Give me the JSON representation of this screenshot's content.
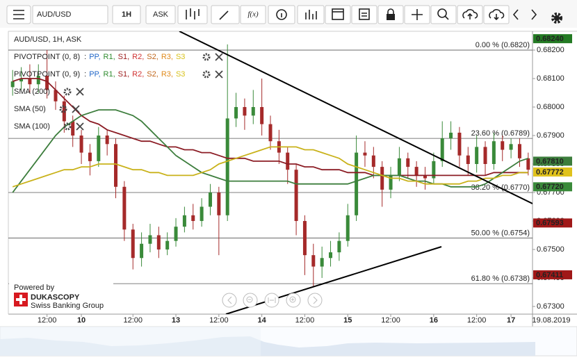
{
  "toolbar": {
    "symbol": "AUD/USD",
    "period": "1H",
    "side": "ASK",
    "fx": "f(x)"
  },
  "branding": {
    "powered": "Powered by",
    "brand": "DUKASCOPY",
    "tagline": "Swiss Banking Group"
  },
  "chart_data": {
    "type": "candlestick",
    "title": "AUD/USD, 1H, ASK",
    "categories": [
      null,
      null,
      null,
      null,
      "12:00",
      null,
      null,
      null,
      "10",
      null,
      null,
      null,
      null,
      null,
      "12:00",
      null,
      null,
      null,
      null,
      "13",
      null,
      null,
      null,
      null,
      "12:00",
      null,
      null,
      null,
      null,
      "14",
      null,
      null,
      null,
      null,
      "12:00",
      null,
      null,
      null,
      null,
      "15",
      null,
      null,
      null,
      null,
      "12:00",
      null,
      null,
      null,
      null,
      "16",
      null,
      null,
      null,
      null,
      "12:00",
      null,
      null,
      null,
      "17",
      null,
      null
    ],
    "date_label": "19.08.2019",
    "open": [
      0.6807,
      0.6809,
      0.681,
      0.6808,
      0.6811,
      0.6806,
      0.6802,
      0.6795,
      0.679,
      0.6784,
      0.6781,
      0.679,
      0.6787,
      0.6772,
      0.6757,
      0.6747,
      0.6752,
      0.6755,
      0.675,
      0.6753,
      0.6758,
      0.6762,
      0.676,
      0.6765,
      0.677,
      0.6762,
      0.6796,
      0.68,
      0.6797,
      0.68,
      0.6794,
      0.6788,
      0.6784,
      0.6778,
      0.676,
      0.6748,
      0.6744,
      0.6747,
      0.6749,
      0.6753,
      0.6762,
      0.6784,
      0.6783,
      0.6779,
      0.6771,
      0.6776,
      0.6782,
      0.6779,
      0.6776,
      0.6775,
      0.6781,
      0.6789,
      0.6791,
      0.6783,
      0.678,
      0.6786,
      0.678,
      0.6788,
      0.6785,
      0.6787,
      0.6782
    ],
    "high": [
      0.6813,
      0.6814,
      0.6815,
      0.6815,
      0.682,
      0.6809,
      0.6804,
      0.6797,
      0.6792,
      0.6787,
      0.6793,
      0.6792,
      0.6789,
      0.6774,
      0.6759,
      0.6756,
      0.6759,
      0.6758,
      0.6756,
      0.6761,
      0.6765,
      0.6766,
      0.6768,
      0.6773,
      0.6772,
      0.6822,
      0.6805,
      0.6803,
      0.6806,
      0.681,
      0.6797,
      0.6792,
      0.6786,
      0.678,
      0.6762,
      0.6752,
      0.6751,
      0.6753,
      0.6756,
      0.6766,
      0.679,
      0.6788,
      0.6786,
      0.6781,
      0.6779,
      0.6786,
      0.6784,
      0.6781,
      0.6779,
      0.6784,
      0.6795,
      0.6795,
      0.6793,
      0.6786,
      0.679,
      0.6788,
      0.6791,
      0.679,
      0.6789,
      0.6789,
      0.6784
    ],
    "low": [
      0.6804,
      0.6806,
      0.6805,
      0.6805,
      0.6803,
      0.6799,
      0.6791,
      0.6786,
      0.678,
      0.6776,
      0.6779,
      0.6783,
      0.6768,
      0.6753,
      0.6743,
      0.6744,
      0.6749,
      0.6747,
      0.6748,
      0.6751,
      0.6756,
      0.6757,
      0.6758,
      0.6762,
      0.6748,
      0.676,
      0.6793,
      0.6792,
      0.6794,
      0.679,
      0.6785,
      0.678,
      0.6773,
      0.6755,
      0.6741,
      0.6737,
      0.674,
      0.6744,
      0.6746,
      0.6751,
      0.676,
      0.6779,
      0.6775,
      0.6765,
      0.6768,
      0.6774,
      0.6775,
      0.6772,
      0.6771,
      0.6773,
      0.6779,
      0.6785,
      0.6779,
      0.6776,
      0.6777,
      0.6776,
      0.6778,
      0.6781,
      0.6782,
      0.6779,
      0.6776
    ],
    "close": [
      0.6809,
      0.681,
      0.6808,
      0.6811,
      0.6806,
      0.6802,
      0.6795,
      0.679,
      0.6784,
      0.6781,
      0.679,
      0.6787,
      0.6772,
      0.6757,
      0.6747,
      0.6752,
      0.6755,
      0.675,
      0.6753,
      0.6758,
      0.6762,
      0.676,
      0.6765,
      0.677,
      0.6762,
      0.6796,
      0.68,
      0.6797,
      0.68,
      0.6794,
      0.6788,
      0.6784,
      0.6778,
      0.676,
      0.6748,
      0.6744,
      0.6747,
      0.6749,
      0.6753,
      0.6762,
      0.6784,
      0.6783,
      0.6779,
      0.6771,
      0.6776,
      0.6782,
      0.6779,
      0.6776,
      0.6775,
      0.6781,
      0.6789,
      0.6791,
      0.6783,
      0.678,
      0.6786,
      0.678,
      0.6788,
      0.6785,
      0.6787,
      0.6782,
      0.6778
    ],
    "up_color": "#3a8a3a",
    "down_color": "#a52a2a",
    "series": [
      {
        "name": "SMA (200)",
        "color": "#8b1c24",
        "values": [
          0.6809,
          0.681,
          0.681,
          0.681,
          0.6809,
          0.6806,
          0.6803,
          0.68,
          0.6797,
          0.6795,
          0.6794,
          0.6792,
          0.6791,
          0.679,
          0.6789,
          0.6788,
          0.6788,
          0.6787,
          0.6786,
          0.6786,
          0.6785,
          0.6785,
          0.6784,
          0.6784,
          0.6783,
          0.6782,
          0.6782,
          0.6782,
          0.6781,
          0.6781,
          0.6781,
          0.6781,
          0.678,
          0.678,
          0.6779,
          0.6779,
          0.6778,
          0.6778,
          0.6778,
          0.6777,
          0.6777,
          0.6777,
          0.6776,
          0.6776,
          0.6776,
          0.6776,
          0.6776,
          0.6776,
          0.6776,
          0.6776,
          0.6776,
          0.6776,
          0.6776,
          0.6776,
          0.6776,
          0.6776,
          0.6777,
          0.6777,
          0.6777,
          0.6777,
          0.6777
        ]
      },
      {
        "name": "SMA (50)",
        "color": "#3c7d3c",
        "values": [
          0.677,
          0.6774,
          0.6778,
          0.6782,
          0.6786,
          0.679,
          0.6793,
          0.6795,
          0.6797,
          0.6798,
          0.6799,
          0.6799,
          0.6799,
          0.6798,
          0.6797,
          0.6795,
          0.6792,
          0.6789,
          0.6786,
          0.6783,
          0.6781,
          0.6779,
          0.6777,
          0.6776,
          0.6775,
          0.6774,
          0.6774,
          0.6774,
          0.6774,
          0.6774,
          0.6774,
          0.6774,
          0.6774,
          0.6773,
          0.6773,
          0.6773,
          0.6773,
          0.6773,
          0.6773,
          0.6773,
          0.6774,
          0.6775,
          0.6776,
          0.6776,
          0.6776,
          0.6776,
          0.6775,
          0.6774,
          0.6774,
          0.6773,
          0.6773,
          0.6772,
          0.6772,
          0.6772,
          0.6772,
          0.6773,
          0.6775,
          0.6777,
          0.6779,
          0.6781,
          0.6782
        ]
      },
      {
        "name": "SMA (100)",
        "color": "#c9b21a",
        "values": [
          0.6772,
          0.6773,
          0.6774,
          0.6775,
          0.6776,
          0.6777,
          0.6778,
          0.6778,
          0.6779,
          0.6779,
          0.678,
          0.678,
          0.678,
          0.6779,
          0.6778,
          0.6778,
          0.6777,
          0.6777,
          0.6776,
          0.6776,
          0.6776,
          0.6776,
          0.6777,
          0.6778,
          0.678,
          0.6781,
          0.6782,
          0.6783,
          0.6784,
          0.6785,
          0.6786,
          0.6786,
          0.6786,
          0.6786,
          0.6785,
          0.6785,
          0.6784,
          0.6783,
          0.6782,
          0.678,
          0.6779,
          0.6778,
          0.6777,
          0.6776,
          0.6775,
          0.6775,
          0.6774,
          0.6774,
          0.6773,
          0.6773,
          0.6773,
          0.6773,
          0.6773,
          0.6774,
          0.6774,
          0.6775,
          0.6775,
          0.6776,
          0.6776,
          0.6777,
          0.6777
        ]
      }
    ],
    "pivots": [
      "PIVOTPOINT (0, 8)",
      "PIVOTPOINT (0, 9)"
    ],
    "pivot_prefix": ":",
    "pivot_items": [
      {
        "text": "PP,",
        "color": "#1f66c8"
      },
      {
        "text": "R1,",
        "color": "#2e8b2e"
      },
      {
        "text": "S1,",
        "color": "#9b1b1b"
      },
      {
        "text": "R2,",
        "color": "#d03030"
      },
      {
        "text": "S2,",
        "color": "#c0651a"
      },
      {
        "text": "R3,",
        "color": "#e08a1a"
      },
      {
        "text": "S3",
        "color": "#d8c21a"
      }
    ],
    "fib_levels": [
      {
        "value": 0.682,
        "label": "0.00 % (0.6820)"
      },
      {
        "value": 0.6789,
        "label": "23.60 % (0.6789)"
      },
      {
        "value": 0.677,
        "label": "38.20 % (0.6770)"
      },
      {
        "value": 0.6754,
        "label": "50.00 % (0.6754)"
      },
      {
        "value": 0.6738,
        "label": "61.80 % (0.6738)"
      }
    ],
    "price_tags": [
      {
        "value": 0.6824,
        "label": "0.68240",
        "color": "#237a23"
      },
      {
        "value": 0.6781,
        "label": "0.67810",
        "color": "#3c7d3c"
      },
      {
        "value": 0.67772,
        "label": "0.67772",
        "color": "#e0c21c"
      },
      {
        "value": 0.6772,
        "label": "0.67720",
        "color": "#3a8a3a"
      },
      {
        "value": 0.67593,
        "label": "0.67593",
        "color": "#a01818"
      },
      {
        "value": 0.67411,
        "label": "0.67411",
        "color": "#a01818"
      }
    ],
    "ylim": [
      0.67273,
      0.68266
    ],
    "yticks": [
      {
        "value": 0.673,
        "label": "0.67300"
      },
      {
        "value": 0.674,
        "label": "0.67400"
      },
      {
        "value": 0.675,
        "label": "0.67500"
      },
      {
        "value": 0.676,
        "label": "0.67600"
      },
      {
        "value": 0.677,
        "label": "0.67700"
      },
      {
        "value": 0.678,
        "label": "0.67800"
      },
      {
        "value": 0.679,
        "label": "0.67900"
      },
      {
        "value": 0.68,
        "label": "0.68000"
      },
      {
        "value": 0.681,
        "label": "0.68100"
      },
      {
        "value": 0.682,
        "label": "0.68200"
      }
    ],
    "grid": false
  }
}
